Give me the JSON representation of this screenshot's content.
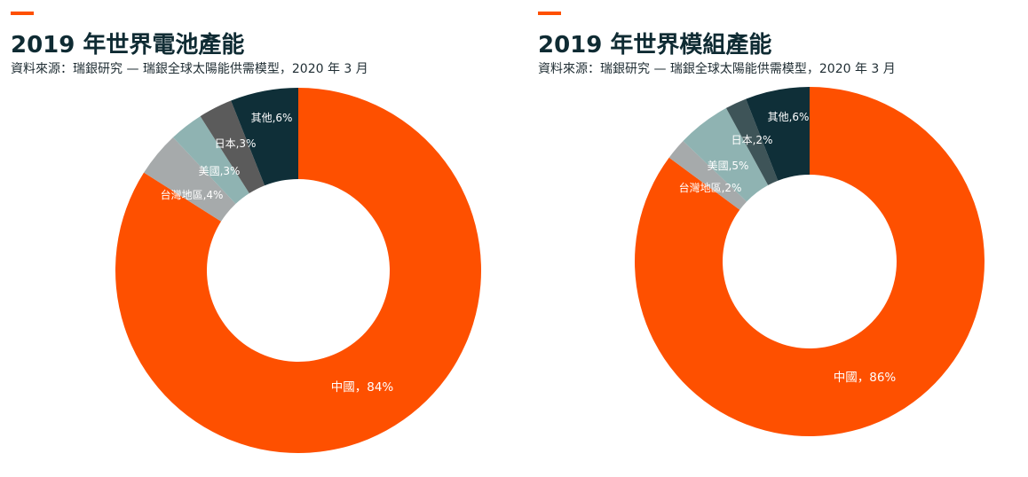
{
  "chart_data": [
    {
      "type": "pie",
      "title": "2019 年世界電池產能",
      "source": "資料來源：瑞銀研究 — 瑞銀全球太陽能供需模型，2020 年 3 月",
      "categories": [
        "中國",
        "台灣地區",
        "美國",
        "日本",
        "其他"
      ],
      "values": [
        84,
        4,
        3,
        3,
        6
      ],
      "labels": [
        "中國，84%",
        "台灣地區,4%",
        "美國,3%",
        "日本,3%",
        "其他,6%"
      ],
      "colors": [
        "#fe5000",
        "#a6aaab",
        "#8fb3b2",
        "#5b5b5b",
        "#0f2f38"
      ],
      "unit": "%",
      "donut": true
    },
    {
      "type": "pie",
      "title": "2019 年世界模組產能",
      "source": "資料來源：瑞銀研究 — 瑞銀全球太陽能供需模型，2020 年 3 月",
      "categories": [
        "中國",
        "台灣地區",
        "美國",
        "日本",
        "其他"
      ],
      "values": [
        86,
        2,
        5,
        2,
        6
      ],
      "labels": [
        "中國，86%",
        "台灣地區,2%",
        "美國,5%",
        "日本,2%",
        "其他,6%"
      ],
      "colors": [
        "#fe5000",
        "#a6aaab",
        "#8fb3b2",
        "#3e5458",
        "#0f2f38"
      ],
      "unit": "%",
      "donut": true
    }
  ]
}
